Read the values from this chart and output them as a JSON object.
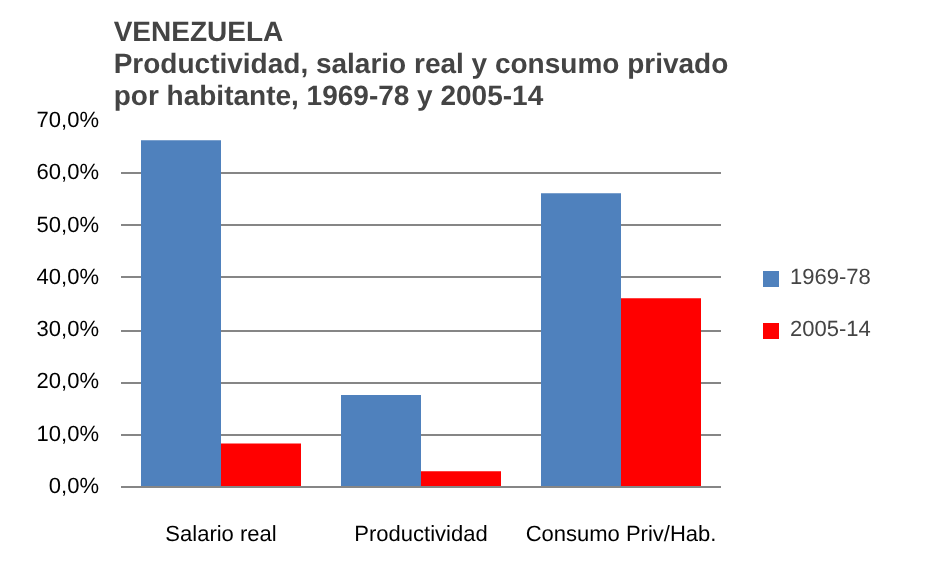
{
  "chart_data": {
    "type": "bar",
    "title": "VENEZUELA",
    "subtitle": "Productividad, salario real y consumo privado\npor habitante, 1969-78 y 2005-14",
    "categories": [
      "Salario real",
      "Productividad",
      "Consumo Priv/Hab."
    ],
    "series": [
      {
        "name": "1969-78",
        "color": "#4f81bd",
        "values": [
          66.3,
          17.6,
          56.2
        ]
      },
      {
        "name": "2005-14",
        "color": "#ff0000",
        "values": [
          8.3,
          3.0,
          36.1
        ]
      }
    ],
    "ylim": [
      0,
      70
    ],
    "yticks": [
      {
        "value": 0,
        "label": "0,0%"
      },
      {
        "value": 10,
        "label": "10,0%"
      },
      {
        "value": 20,
        "label": "20,0%"
      },
      {
        "value": 30,
        "label": "30,0%"
      },
      {
        "value": 40,
        "label": "40,0%"
      },
      {
        "value": 50,
        "label": "50,0%"
      },
      {
        "value": 60,
        "label": "60,0%"
      },
      {
        "value": 70,
        "label": "70,0%"
      }
    ],
    "grid": "y",
    "legend": "right"
  }
}
